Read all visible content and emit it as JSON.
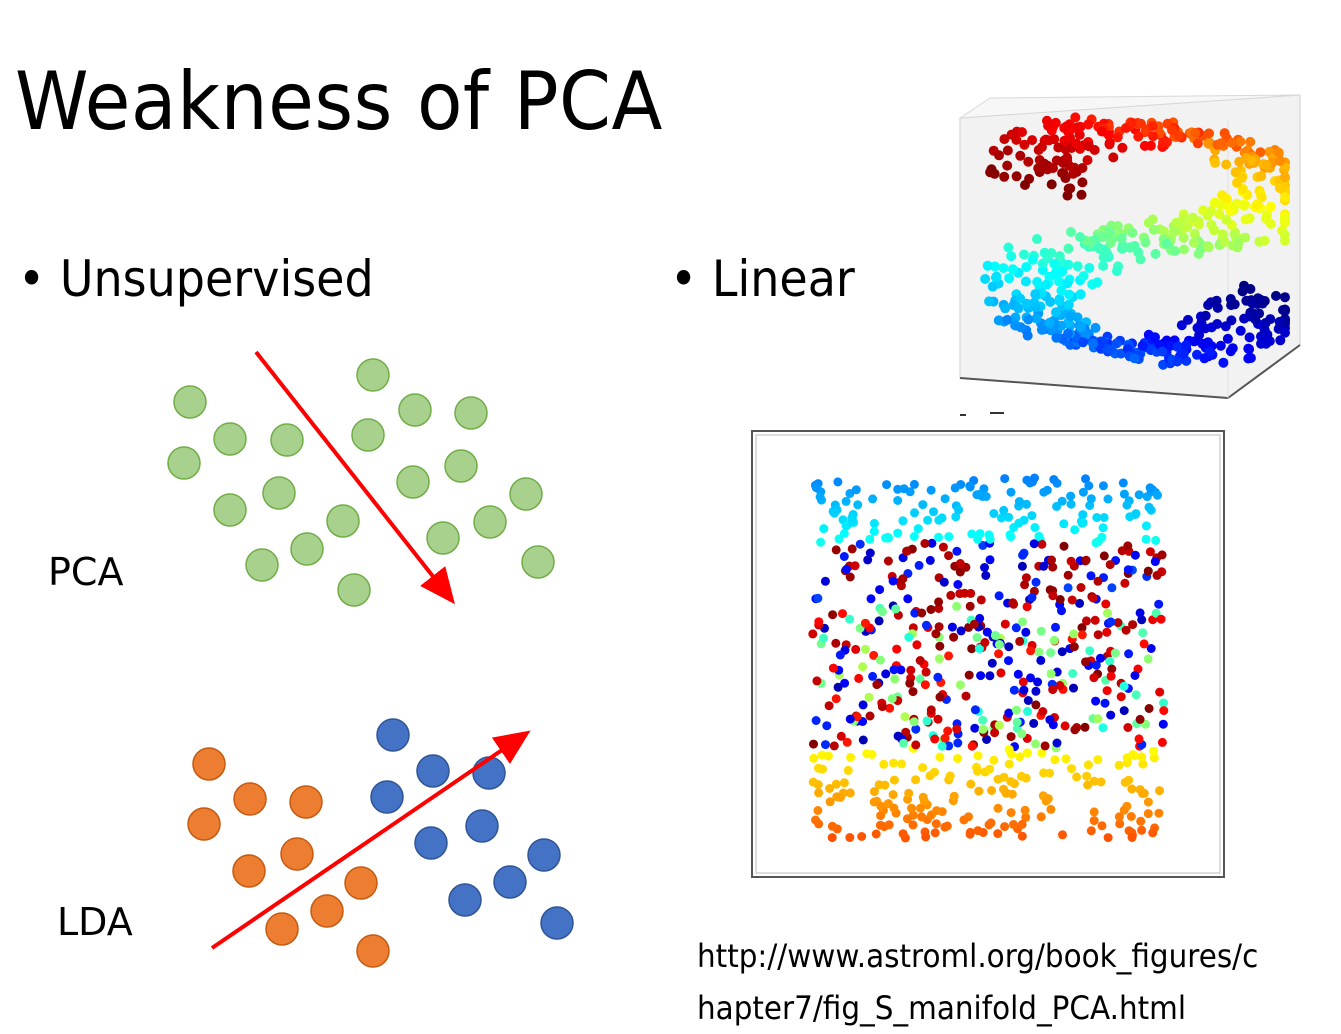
{
  "slide": {
    "title": "Weakness of PCA",
    "bullets": [
      "Unsupervised",
      "Linear"
    ],
    "bullet_glyph": "•",
    "pca_label": "PCA",
    "lda_label": "LDA",
    "url_line1": "http://www.astroml.org/book_figures/c",
    "url_line2": "hapter7/fig_S_manifold_PCA.html"
  },
  "colors": {
    "green_fill": "#a9d18e",
    "green_stroke": "#70ad47",
    "orange_fill": "#ed7d31",
    "orange_stroke": "#c55a11",
    "blue_fill": "#4472c4",
    "blue_stroke": "#2f5597",
    "arrow": "#ff0000"
  }
}
